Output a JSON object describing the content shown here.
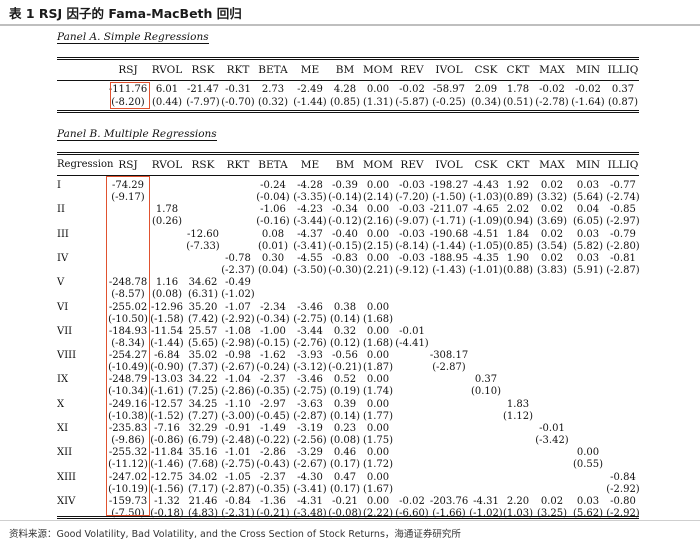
{
  "title": "表 1 RSJ 因子的 Fama-MacBeth 回归",
  "panelA": {
    "title": "Panel A. Simple Regressions",
    "columns": [
      "RSJ",
      "RVOL",
      "RSK",
      "RKT",
      "BETA",
      "ME",
      "BM",
      "MOM",
      "REV",
      "IVOL",
      "CSK",
      "CKT",
      "MAX",
      "MIN",
      "ILLIQ"
    ],
    "coef": [
      "-111.76",
      "6.01",
      "-21.47",
      "-0.31",
      "2.73",
      "-2.49",
      "4.28",
      "0.00",
      "-0.02",
      "-58.97",
      "2.09",
      "1.78",
      "-0.02",
      "-0.02",
      "0.37"
    ],
    "tstat": [
      "(-8.20)",
      "(0.44)",
      "(-7.97)",
      "(-0.70)",
      "(0.32)",
      "(-1.44)",
      "(0.85)",
      "(1.31)",
      "(-5.87)",
      "(-0.25)",
      "(0.34)",
      "(0.51)",
      "(-2.78)",
      "(-1.64)",
      "(0.87)"
    ]
  },
  "panelB": {
    "title": "Panel B. Multiple Regressions",
    "header_regression": "Regression",
    "columns": [
      "RSJ",
      "RVOL",
      "RSK",
      "RKT",
      "BETA",
      "ME",
      "BM",
      "MOM",
      "REV",
      "IVOL",
      "CSK",
      "CKT",
      "MAX",
      "MIN",
      "ILLIQ"
    ],
    "rows": [
      {
        "label": "I",
        "coef": [
          "-74.29",
          "",
          "",
          "",
          "-0.24",
          "-4.28",
          "-0.39",
          "0.00",
          "-0.03",
          "-198.27",
          "-4.43",
          "1.92",
          "0.02",
          "0.03",
          "-0.77"
        ],
        "tstat": [
          "(-9.17)",
          "",
          "",
          "",
          "(-0.04)",
          "(-3.35)",
          "(-0.14)",
          "(2.14)",
          "(-7.20)",
          "(-1.50)",
          "(-1.03)",
          "(0.89)",
          "(3.32)",
          "(5.64)",
          "(-2.74)"
        ]
      },
      {
        "label": "II",
        "coef": [
          "",
          "1.78",
          "",
          "",
          "-1.06",
          "-4.23",
          "-0.34",
          "0.00",
          "-0.03",
          "-211.07",
          "-4.65",
          "2.02",
          "0.02",
          "0.04",
          "-0.85"
        ],
        "tstat": [
          "",
          "(0.26)",
          "",
          "",
          "(-0.16)",
          "(-3.44)",
          "(-0.12)",
          "(2.16)",
          "(-9.07)",
          "(-1.71)",
          "(-1.09)",
          "(0.94)",
          "(3.69)",
          "(6.05)",
          "(-2.97)"
        ]
      },
      {
        "label": "III",
        "coef": [
          "",
          "",
          "-12.60",
          "",
          "0.08",
          "-4.37",
          "-0.40",
          "0.00",
          "-0.03",
          "-190.68",
          "-4.51",
          "1.84",
          "0.02",
          "0.03",
          "-0.79"
        ],
        "tstat": [
          "",
          "",
          "(-7.33)",
          "",
          "(0.01)",
          "(-3.41)",
          "(-0.15)",
          "(2.15)",
          "(-8.14)",
          "(-1.44)",
          "(-1.05)",
          "(0.85)",
          "(3.54)",
          "(5.82)",
          "(-2.80)"
        ]
      },
      {
        "label": "IV",
        "coef": [
          "",
          "",
          "",
          "-0.78",
          "0.30",
          "-4.55",
          "-0.83",
          "0.00",
          "-0.03",
          "-188.95",
          "-4.35",
          "1.90",
          "0.02",
          "0.03",
          "-0.81"
        ],
        "tstat": [
          "",
          "",
          "",
          "(-2.37)",
          "(0.04)",
          "(-3.50)",
          "(-0.30)",
          "(2.21)",
          "(-9.12)",
          "(-1.43)",
          "(-1.01)",
          "(0.88)",
          "(3.83)",
          "(5.91)",
          "(-2.87)"
        ]
      },
      {
        "label": "V",
        "coef": [
          "-248.78",
          "1.16",
          "34.62",
          "-0.49",
          "",
          "",
          "",
          "",
          "",
          "",
          "",
          "",
          "",
          "",
          ""
        ],
        "tstat": [
          "(-8.57)",
          "(0.08)",
          "(6.31)",
          "(-1.02)",
          "",
          "",
          "",
          "",
          "",
          "",
          "",
          "",
          "",
          "",
          ""
        ]
      },
      {
        "label": "VI",
        "coef": [
          "-255.02",
          "-12.96",
          "35.20",
          "-1.07",
          "-2.34",
          "-3.46",
          "0.38",
          "0.00",
          "",
          "",
          "",
          "",
          "",
          "",
          ""
        ],
        "tstat": [
          "(-10.50)",
          "(-1.58)",
          "(7.42)",
          "(-2.92)",
          "(-0.34)",
          "(-2.75)",
          "(0.14)",
          "(1.68)",
          "",
          "",
          "",
          "",
          "",
          "",
          ""
        ]
      },
      {
        "label": "VII",
        "coef": [
          "-184.93",
          "-11.54",
          "25.57",
          "-1.08",
          "-1.00",
          "-3.44",
          "0.32",
          "0.00",
          "-0.01",
          "",
          "",
          "",
          "",
          "",
          ""
        ],
        "tstat": [
          "(-8.34)",
          "(-1.44)",
          "(5.65)",
          "(-2.98)",
          "(-0.15)",
          "(-2.76)",
          "(0.12)",
          "(1.68)",
          "(-4.41)",
          "",
          "",
          "",
          "",
          "",
          ""
        ]
      },
      {
        "label": "VIII",
        "coef": [
          "-254.27",
          "-6.84",
          "35.02",
          "-0.98",
          "-1.62",
          "-3.93",
          "-0.56",
          "0.00",
          "",
          "-308.17",
          "",
          "",
          "",
          "",
          ""
        ],
        "tstat": [
          "(-10.49)",
          "(-0.90)",
          "(7.37)",
          "(-2.67)",
          "(-0.24)",
          "(-3.12)",
          "(-0.21)",
          "(1.87)",
          "",
          "(-2.87)",
          "",
          "",
          "",
          "",
          ""
        ]
      },
      {
        "label": "IX",
        "coef": [
          "-248.79",
          "-13.03",
          "34.22",
          "-1.04",
          "-2.37",
          "-3.46",
          "0.52",
          "0.00",
          "",
          "",
          "0.37",
          "",
          "",
          "",
          ""
        ],
        "tstat": [
          "(-10.34)",
          "(-1.61)",
          "(7.25)",
          "(-2.86)",
          "(-0.35)",
          "(-2.75)",
          "(0.19)",
          "(1.74)",
          "",
          "",
          "(0.10)",
          "",
          "",
          "",
          ""
        ]
      },
      {
        "label": "X",
        "coef": [
          "-249.16",
          "-12.57",
          "34.25",
          "-1.10",
          "-2.97",
          "-3.63",
          "0.39",
          "0.00",
          "",
          "",
          "",
          "1.83",
          "",
          "",
          ""
        ],
        "tstat": [
          "(-10.38)",
          "(-1.52)",
          "(7.27)",
          "(-3.00)",
          "(-0.45)",
          "(-2.87)",
          "(0.14)",
          "(1.77)",
          "",
          "",
          "",
          "(1.12)",
          "",
          "",
          ""
        ]
      },
      {
        "label": "XI",
        "coef": [
          "-235.83",
          "-7.16",
          "32.29",
          "-0.91",
          "-1.49",
          "-3.19",
          "0.23",
          "0.00",
          "",
          "",
          "",
          "",
          "-0.01",
          "",
          ""
        ],
        "tstat": [
          "(-9.86)",
          "(-0.86)",
          "(6.79)",
          "(-2.48)",
          "(-0.22)",
          "(-2.56)",
          "(0.08)",
          "(1.75)",
          "",
          "",
          "",
          "",
          "(-3.42)",
          "",
          ""
        ]
      },
      {
        "label": "XII",
        "coef": [
          "-255.32",
          "-11.84",
          "35.16",
          "-1.01",
          "-2.86",
          "-3.29",
          "0.46",
          "0.00",
          "",
          "",
          "",
          "",
          "",
          "0.00",
          ""
        ],
        "tstat": [
          "(-11.12)",
          "(-1.46)",
          "(7.68)",
          "(-2.75)",
          "(-0.43)",
          "(-2.67)",
          "(0.17)",
          "(1.72)",
          "",
          "",
          "",
          "",
          "",
          "(0.55)",
          ""
        ]
      },
      {
        "label": "XIII",
        "coef": [
          "-247.02",
          "-12.75",
          "34.02",
          "-1.05",
          "-2.37",
          "-4.30",
          "0.47",
          "0.00",
          "",
          "",
          "",
          "",
          "",
          "",
          "-0.84"
        ],
        "tstat": [
          "(-10.19)",
          "(-1.56)",
          "(7.17)",
          "(-2.87)",
          "(-0.35)",
          "(-3.41)",
          "(0.17)",
          "(1.67)",
          "",
          "",
          "",
          "",
          "",
          "",
          "(-2.92)"
        ]
      },
      {
        "label": "XIV",
        "coef": [
          "-159.73",
          "-1.32",
          "21.46",
          "-0.84",
          "-1.36",
          "-4.31",
          "-0.21",
          "0.00",
          "-0.02",
          "-203.76",
          "-4.31",
          "2.20",
          "0.02",
          "0.03",
          "-0.80"
        ],
        "tstat": [
          "(-7.50)",
          "(-0.18)",
          "(4.83)",
          "(-2.31)",
          "(-0.21)",
          "(-3.48)",
          "(-0.08)",
          "(2.22)",
          "(-6.60)",
          "(-1.66)",
          "(-1.02)",
          "(1.03)",
          "(3.25)",
          "(5.62)",
          "(-2.92)"
        ]
      }
    ]
  },
  "source": "资料来源：Good Volatility, Bad Volatility, and the Cross Section of Stock Returns，海通证券研究所",
  "colors": {
    "highlight_box": "#e0522f",
    "rule": "#111111"
  }
}
